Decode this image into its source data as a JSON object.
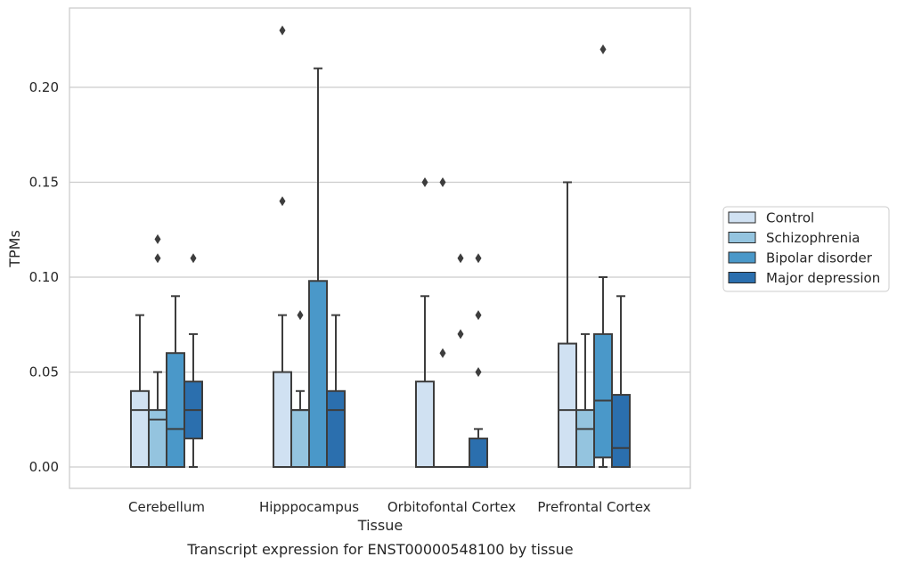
{
  "caption": "Transcript expression for ENST00000548100 by tissue",
  "chart_data": {
    "type": "box",
    "xlabel": "Tissue",
    "ylabel": "TPMs",
    "ylim": [
      -0.011,
      0.242
    ],
    "yticks": [
      0.0,
      0.05,
      0.1,
      0.15,
      0.2
    ],
    "ytick_labels": [
      "0.00",
      "0.05",
      "0.10",
      "0.15",
      "0.20"
    ],
    "grid": "horizontal",
    "legend_position": "right",
    "categories": [
      "Cerebellum",
      "Hipppocampus",
      "Orbitofontal Cortex",
      "Prefrontal Cortex"
    ],
    "series": [
      {
        "name": "Control",
        "color": "#d0e1f2",
        "boxes": [
          {
            "wlo": 0.0,
            "q1": 0.0,
            "med": 0.03,
            "q3": 0.04,
            "whi": 0.08,
            "outliers": []
          },
          {
            "wlo": 0.0,
            "q1": 0.0,
            "med": 0.0,
            "q3": 0.05,
            "whi": 0.08,
            "outliers": [
              0.14,
              0.23
            ]
          },
          {
            "wlo": 0.0,
            "q1": 0.0,
            "med": 0.0,
            "q3": 0.045,
            "whi": 0.09,
            "outliers": [
              0.15
            ]
          },
          {
            "wlo": 0.0,
            "q1": 0.0,
            "med": 0.03,
            "q3": 0.065,
            "whi": 0.15,
            "outliers": []
          }
        ]
      },
      {
        "name": "Schizophrenia",
        "color": "#94c4df",
        "boxes": [
          {
            "wlo": 0.0,
            "q1": 0.0,
            "med": 0.025,
            "q3": 0.03,
            "whi": 0.05,
            "outliers": [
              0.11,
              0.12
            ]
          },
          {
            "wlo": 0.0,
            "q1": 0.0,
            "med": 0.03,
            "q3": 0.03,
            "whi": 0.04,
            "outliers": [
              0.08
            ]
          },
          {
            "wlo": 0.0,
            "q1": 0.0,
            "med": 0.0,
            "q3": 0.0,
            "whi": 0.0,
            "outliers": [
              0.06,
              0.15
            ]
          },
          {
            "wlo": 0.0,
            "q1": 0.0,
            "med": 0.02,
            "q3": 0.03,
            "whi": 0.07,
            "outliers": []
          }
        ]
      },
      {
        "name": "Bipolar disorder",
        "color": "#4a98c9",
        "boxes": [
          {
            "wlo": 0.0,
            "q1": 0.0,
            "med": 0.02,
            "q3": 0.06,
            "whi": 0.09,
            "outliers": []
          },
          {
            "wlo": 0.0,
            "q1": 0.0,
            "med": 0.0,
            "q3": 0.098,
            "whi": 0.21,
            "outliers": []
          },
          {
            "wlo": 0.0,
            "q1": 0.0,
            "med": 0.0,
            "q3": 0.0,
            "whi": 0.0,
            "outliers": [
              0.07,
              0.11
            ]
          },
          {
            "wlo": 0.0,
            "q1": 0.005,
            "med": 0.035,
            "q3": 0.07,
            "whi": 0.1,
            "outliers": [
              0.22
            ]
          }
        ]
      },
      {
        "name": "Major depression",
        "color": "#2b6fae",
        "boxes": [
          {
            "wlo": 0.0,
            "q1": 0.015,
            "med": 0.03,
            "q3": 0.045,
            "whi": 0.07,
            "outliers": [
              0.11
            ]
          },
          {
            "wlo": 0.0,
            "q1": 0.0,
            "med": 0.03,
            "q3": 0.04,
            "whi": 0.08,
            "outliers": []
          },
          {
            "wlo": 0.0,
            "q1": 0.0,
            "med": 0.0,
            "q3": 0.015,
            "whi": 0.02,
            "outliers": [
              0.05,
              0.08,
              0.11
            ]
          },
          {
            "wlo": 0.0,
            "q1": 0.0,
            "med": 0.01,
            "q3": 0.038,
            "whi": 0.09,
            "outliers": []
          }
        ]
      }
    ]
  }
}
